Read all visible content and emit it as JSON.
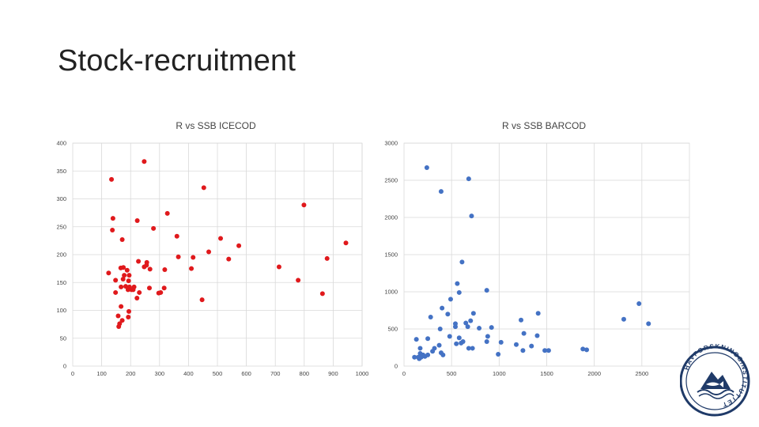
{
  "slide": {
    "title": "Stock-recruitment"
  },
  "logo": {
    "text": "HAVFORSKNINGSINSTITUTTET",
    "name": "havforskningsinstituttet-logo"
  },
  "chart_data": [
    {
      "type": "scatter",
      "title": "R vs SSB ICECOD",
      "xlabel": "",
      "ylabel": "",
      "xlim": [
        0,
        1000
      ],
      "ylim": [
        0,
        400
      ],
      "xticks": [
        0,
        100,
        200,
        300,
        400,
        500,
        600,
        700,
        800,
        900,
        1000
      ],
      "yticks": [
        0,
        50,
        100,
        150,
        200,
        250,
        300,
        350,
        400
      ],
      "grid": true,
      "legend": "none",
      "color": "#e0191c",
      "points": [
        [
          247,
          367
        ],
        [
          134,
          335
        ],
        [
          453,
          320
        ],
        [
          799,
          289
        ],
        [
          139,
          265
        ],
        [
          327,
          274
        ],
        [
          223,
          261
        ],
        [
          137,
          244
        ],
        [
          279,
          247
        ],
        [
          171,
          227
        ],
        [
          360,
          233
        ],
        [
          511,
          229
        ],
        [
          944,
          221
        ],
        [
          574,
          216
        ],
        [
          470,
          205
        ],
        [
          365,
          196
        ],
        [
          416,
          195
        ],
        [
          539,
          192
        ],
        [
          879,
          193
        ],
        [
          227,
          188
        ],
        [
          256,
          186
        ],
        [
          255,
          181
        ],
        [
          166,
          176
        ],
        [
          175,
          177
        ],
        [
          247,
          178
        ],
        [
          188,
          172
        ],
        [
          267,
          174
        ],
        [
          318,
          173
        ],
        [
          410,
          175
        ],
        [
          713,
          178
        ],
        [
          124,
          167
        ],
        [
          178,
          163
        ],
        [
          195,
          163
        ],
        [
          148,
          154
        ],
        [
          174,
          156
        ],
        [
          193,
          153
        ],
        [
          779,
          154
        ],
        [
          167,
          142
        ],
        [
          183,
          143
        ],
        [
          196,
          142
        ],
        [
          212,
          142
        ],
        [
          265,
          140
        ],
        [
          316,
          140
        ],
        [
          148,
          132
        ],
        [
          191,
          137
        ],
        [
          203,
          137
        ],
        [
          209,
          137
        ],
        [
          230,
          132
        ],
        [
          297,
          131
        ],
        [
          304,
          132
        ],
        [
          863,
          130
        ],
        [
          222,
          122
        ],
        [
          447,
          119
        ],
        [
          167,
          107
        ],
        [
          194,
          98
        ],
        [
          157,
          90
        ],
        [
          192,
          88
        ],
        [
          171,
          82
        ],
        [
          162,
          76
        ],
        [
          159,
          71
        ]
      ]
    },
    {
      "type": "scatter",
      "title": "R vs SSB BARCOD",
      "xlabel": "",
      "ylabel": "",
      "xlim": [
        0,
        3000
      ],
      "ylim": [
        0,
        3000
      ],
      "xticks": [
        0,
        500,
        1000,
        1500,
        2000,
        2500
      ],
      "yticks": [
        0,
        500,
        1000,
        1500,
        2000,
        2500,
        3000
      ],
      "grid": true,
      "legend": "none",
      "color": "#4472c4",
      "points": [
        [
          240,
          2670
        ],
        [
          680,
          2520
        ],
        [
          390,
          2350
        ],
        [
          710,
          2020
        ],
        [
          610,
          1400
        ],
        [
          560,
          1110
        ],
        [
          870,
          1020
        ],
        [
          580,
          990
        ],
        [
          490,
          900
        ],
        [
          400,
          780
        ],
        [
          2470,
          840
        ],
        [
          280,
          660
        ],
        [
          460,
          700
        ],
        [
          730,
          710
        ],
        [
          1410,
          710
        ],
        [
          2310,
          630
        ],
        [
          1230,
          620
        ],
        [
          2570,
          570
        ],
        [
          700,
          610
        ],
        [
          650,
          580
        ],
        [
          540,
          570
        ],
        [
          380,
          500
        ],
        [
          670,
          530
        ],
        [
          540,
          530
        ],
        [
          920,
          520
        ],
        [
          790,
          510
        ],
        [
          1260,
          440
        ],
        [
          1400,
          410
        ],
        [
          880,
          400
        ],
        [
          480,
          400
        ],
        [
          580,
          380
        ],
        [
          250,
          370
        ],
        [
          130,
          360
        ],
        [
          620,
          330
        ],
        [
          1020,
          320
        ],
        [
          870,
          330
        ],
        [
          600,
          310
        ],
        [
          550,
          300
        ],
        [
          1180,
          290
        ],
        [
          370,
          280
        ],
        [
          1340,
          270
        ],
        [
          320,
          240
        ],
        [
          720,
          240
        ],
        [
          170,
          240
        ],
        [
          680,
          240
        ],
        [
          1480,
          210
        ],
        [
          1520,
          210
        ],
        [
          1880,
          230
        ],
        [
          1920,
          220
        ],
        [
          1250,
          210
        ],
        [
          300,
          200
        ],
        [
          390,
          180
        ],
        [
          990,
          160
        ],
        [
          170,
          170
        ],
        [
          410,
          150
        ],
        [
          200,
          150
        ],
        [
          250,
          150
        ],
        [
          110,
          120
        ],
        [
          150,
          120
        ],
        [
          180,
          120
        ],
        [
          220,
          130
        ],
        [
          160,
          100
        ]
      ]
    }
  ]
}
